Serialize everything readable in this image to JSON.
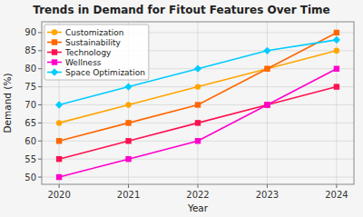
{
  "chart_data": {
    "type": "line",
    "title": "Trends in Demand for Fitout Features Over Time",
    "x_label": "Year",
    "y_label": "Demand (%)",
    "x": [
      2020,
      2021,
      2022,
      2023,
      2024
    ],
    "series": [
      {
        "name": "Customization",
        "values": [
          65,
          70,
          75,
          80,
          85
        ],
        "color": "#FFA500",
        "marker": "circle"
      },
      {
        "name": "Sustainability",
        "values": [
          60,
          65,
          70,
          80,
          90
        ],
        "color": "#FF6600",
        "marker": "square"
      },
      {
        "name": "Technology",
        "values": [
          55,
          60,
          65,
          70,
          75
        ],
        "color": "#FF1050",
        "marker": "square"
      },
      {
        "name": "Wellness",
        "values": [
          50,
          55,
          60,
          70,
          80
        ],
        "color": "#FF00CC",
        "marker": "square"
      },
      {
        "name": "Space Optimization",
        "values": [
          70,
          75,
          80,
          85,
          88
        ],
        "color": "#00CCFF",
        "marker": "diamond"
      }
    ],
    "xlim": [
      2019.75,
      2024.25
    ],
    "ylim": [
      48,
      93
    ],
    "xticks": [
      2020,
      2021,
      2022,
      2023,
      2024
    ],
    "yticks": [
      50,
      55,
      60,
      65,
      70,
      75,
      80,
      85,
      90
    ],
    "grid": true,
    "legend": "upper left"
  }
}
